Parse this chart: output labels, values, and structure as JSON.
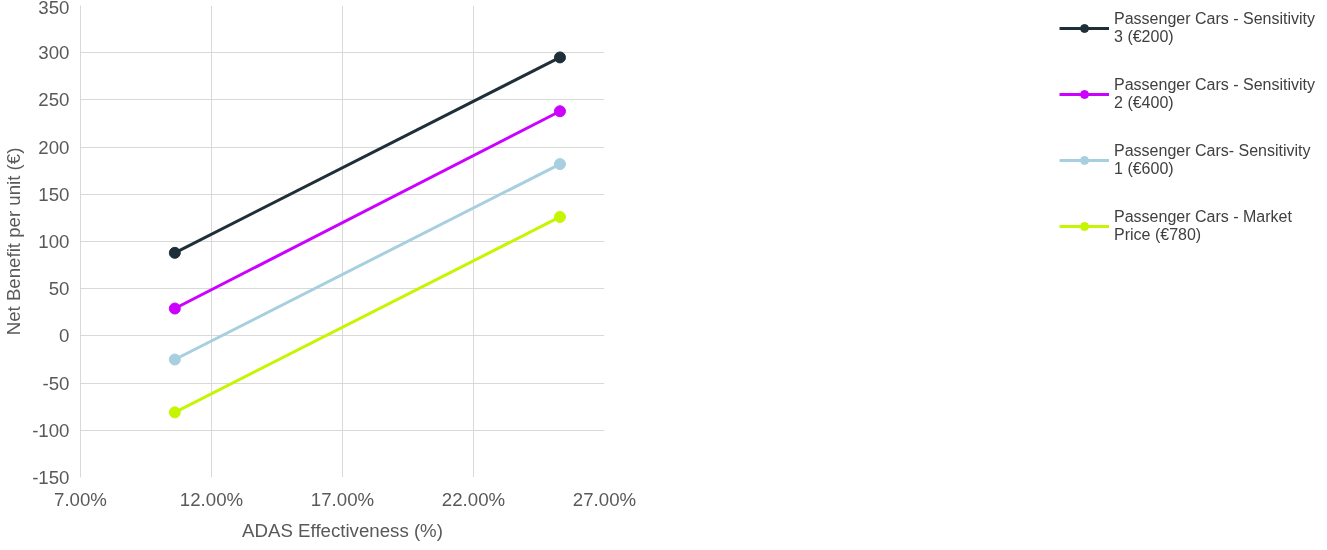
{
  "chart_data": {
    "type": "line",
    "xlabel": "ADAS Effectiveness (%)",
    "ylabel": "Net Benefit per unit (€)",
    "xlim": [
      7,
      27
    ],
    "xticks": [
      {
        "value": 7,
        "label": "7.00%"
      },
      {
        "value": 12,
        "label": "12.00%"
      },
      {
        "value": 17,
        "label": "17.00%"
      },
      {
        "value": 22,
        "label": "22.00%"
      },
      {
        "value": 27,
        "label": "27.00%"
      }
    ],
    "ylim": [
      -150,
      350
    ],
    "yticks": [
      -150,
      -100,
      -50,
      0,
      50,
      100,
      150,
      200,
      250,
      300,
      350
    ],
    "grid": true,
    "legend": "right",
    "marker": "circle",
    "line_style": "solid",
    "x": [
      10.6,
      25.3
    ],
    "series": [
      {
        "name": "Passenger Cars - Sensitivity 3 (€200)",
        "color": "#1f2f3a",
        "values": [
          88,
          295
        ]
      },
      {
        "name": "Passenger Cars - Sensitivity 2 (€400)",
        "color": "#cc00ff",
        "values": [
          29,
          238
        ]
      },
      {
        "name": "Passenger Cars- Sensitivity 1 (€600)",
        "color": "#a8cfe0",
        "values": [
          -25,
          182
        ]
      },
      {
        "name": "Passenger Cars - Market Price (€780)",
        "color": "#c6f500",
        "values": [
          -81,
          126
        ]
      }
    ]
  }
}
